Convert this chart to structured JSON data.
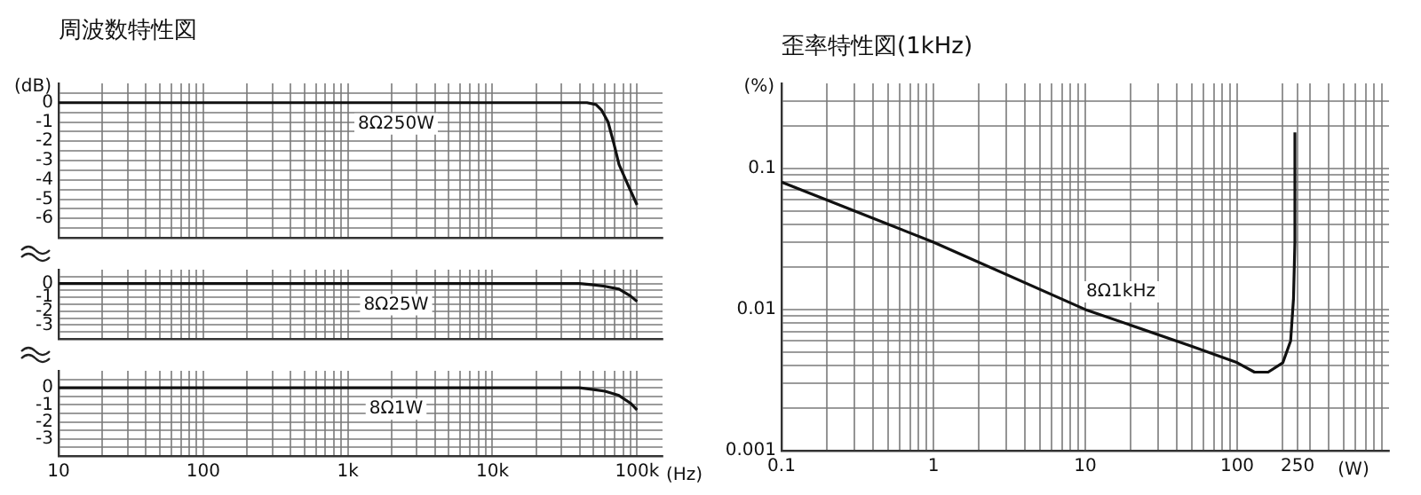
{
  "chart_data": [
    {
      "type": "line",
      "title": "周波数特性図",
      "ylabel": "(dB)",
      "log": "x",
      "grid": true,
      "marker": "none",
      "line_style": "solid",
      "tick_labels": "y",
      "xlim": [
        10,
        150000
      ],
      "ylim": [
        -7,
        1
      ],
      "xticks": [
        {
          "value": 10,
          "label": null
        },
        {
          "value": 20,
          "label": null
        },
        {
          "value": 30,
          "label": null
        },
        {
          "value": 40,
          "label": null
        },
        {
          "value": 50,
          "label": null
        },
        {
          "value": 60,
          "label": null
        },
        {
          "value": 70,
          "label": null
        },
        {
          "value": 80,
          "label": null
        },
        {
          "value": 90,
          "label": null
        },
        {
          "value": 100,
          "label": null
        },
        {
          "value": 200,
          "label": null
        },
        {
          "value": 300,
          "label": null
        },
        {
          "value": 400,
          "label": null
        },
        {
          "value": 500,
          "label": null
        },
        {
          "value": 600,
          "label": null
        },
        {
          "value": 700,
          "label": null
        },
        {
          "value": 800,
          "label": null
        },
        {
          "value": 900,
          "label": null
        },
        {
          "value": 1000,
          "label": null
        },
        {
          "value": 2000,
          "label": null
        },
        {
          "value": 3000,
          "label": null
        },
        {
          "value": 4000,
          "label": null
        },
        {
          "value": 5000,
          "label": null
        },
        {
          "value": 6000,
          "label": null
        },
        {
          "value": 7000,
          "label": null
        },
        {
          "value": 8000,
          "label": null
        },
        {
          "value": 9000,
          "label": null
        },
        {
          "value": 10000,
          "label": null
        },
        {
          "value": 20000,
          "label": null
        },
        {
          "value": 30000,
          "label": null
        },
        {
          "value": 40000,
          "label": null
        },
        {
          "value": 50000,
          "label": null
        },
        {
          "value": 60000,
          "label": null
        },
        {
          "value": 70000,
          "label": null
        },
        {
          "value": 80000,
          "label": null
        },
        {
          "value": 90000,
          "label": null
        },
        {
          "value": 100000,
          "label": null
        }
      ],
      "yticks": [
        {
          "value": 0.5,
          "label": null
        },
        0,
        {
          "value": -0.5,
          "label": null
        },
        -1,
        {
          "value": -1.5,
          "label": null
        },
        -2,
        {
          "value": -2.5,
          "label": null
        },
        -3,
        {
          "value": -3.5,
          "label": null
        },
        -4,
        {
          "value": -4.5,
          "label": null
        },
        -5,
        {
          "value": -5.5,
          "label": null
        },
        -6,
        {
          "value": -6.5,
          "label": null
        }
      ],
      "series": [
        {
          "name": "8Ω250W",
          "color": "#111111",
          "x": [
            10,
            100,
            1000,
            10000,
            30000,
            45000,
            52000,
            57000,
            63000,
            69000,
            75000,
            87000,
            100000
          ],
          "values": [
            0,
            0,
            0,
            0,
            0,
            0,
            -0.1,
            -0.4,
            -1.0,
            -2.1,
            -3.2,
            -4.3,
            -5.3
          ]
        }
      ]
    },
    {
      "type": "line",
      "log": "x",
      "grid": true,
      "marker": "none",
      "line_style": "solid",
      "tick_labels": "y",
      "xlim": [
        10,
        150000
      ],
      "ylim": [
        -4,
        1
      ],
      "xticks": [
        {
          "value": 10,
          "label": null
        },
        {
          "value": 20,
          "label": null
        },
        {
          "value": 30,
          "label": null
        },
        {
          "value": 40,
          "label": null
        },
        {
          "value": 50,
          "label": null
        },
        {
          "value": 60,
          "label": null
        },
        {
          "value": 70,
          "label": null
        },
        {
          "value": 80,
          "label": null
        },
        {
          "value": 90,
          "label": null
        },
        {
          "value": 100,
          "label": null
        },
        {
          "value": 200,
          "label": null
        },
        {
          "value": 300,
          "label": null
        },
        {
          "value": 400,
          "label": null
        },
        {
          "value": 500,
          "label": null
        },
        {
          "value": 600,
          "label": null
        },
        {
          "value": 700,
          "label": null
        },
        {
          "value": 800,
          "label": null
        },
        {
          "value": 900,
          "label": null
        },
        {
          "value": 1000,
          "label": null
        },
        {
          "value": 2000,
          "label": null
        },
        {
          "value": 3000,
          "label": null
        },
        {
          "value": 4000,
          "label": null
        },
        {
          "value": 5000,
          "label": null
        },
        {
          "value": 6000,
          "label": null
        },
        {
          "value": 7000,
          "label": null
        },
        {
          "value": 8000,
          "label": null
        },
        {
          "value": 9000,
          "label": null
        },
        {
          "value": 10000,
          "label": null
        },
        {
          "value": 20000,
          "label": null
        },
        {
          "value": 30000,
          "label": null
        },
        {
          "value": 40000,
          "label": null
        },
        {
          "value": 50000,
          "label": null
        },
        {
          "value": 60000,
          "label": null
        },
        {
          "value": 70000,
          "label": null
        },
        {
          "value": 80000,
          "label": null
        },
        {
          "value": 90000,
          "label": null
        },
        {
          "value": 100000,
          "label": null
        }
      ],
      "yticks": [
        {
          "value": 0.5,
          "label": null
        },
        0,
        {
          "value": -0.5,
          "label": null
        },
        -1,
        {
          "value": -1.5,
          "label": null
        },
        -2,
        {
          "value": -2.5,
          "label": null
        },
        -3,
        {
          "value": -3.5,
          "label": null
        }
      ],
      "series": [
        {
          "name": "8Ω25W",
          "color": "#111111",
          "x": [
            10,
            100,
            1000,
            10000,
            30000,
            40000,
            50000,
            60000,
            75000,
            90000,
            100000
          ],
          "values": [
            0,
            0,
            0,
            0,
            0,
            0,
            -0.1,
            -0.2,
            -0.4,
            -0.9,
            -1.3
          ]
        }
      ]
    },
    {
      "type": "line",
      "xlabel": "(Hz)",
      "log": "x",
      "grid": true,
      "marker": "none",
      "line_style": "solid",
      "xlim": [
        10,
        150000
      ],
      "ylim": [
        -4,
        1
      ],
      "xticks": [
        10,
        {
          "value": 20,
          "label": null
        },
        {
          "value": 30,
          "label": null
        },
        {
          "value": 40,
          "label": null
        },
        {
          "value": 50,
          "label": null
        },
        {
          "value": 60,
          "label": null
        },
        {
          "value": 70,
          "label": null
        },
        {
          "value": 80,
          "label": null
        },
        {
          "value": 90,
          "label": null
        },
        100,
        {
          "value": 200,
          "label": null
        },
        {
          "value": 300,
          "label": null
        },
        {
          "value": 400,
          "label": null
        },
        {
          "value": 500,
          "label": null
        },
        {
          "value": 600,
          "label": null
        },
        {
          "value": 700,
          "label": null
        },
        {
          "value": 800,
          "label": null
        },
        {
          "value": 900,
          "label": null
        },
        {
          "value": 1000,
          "label": "1k"
        },
        {
          "value": 2000,
          "label": null
        },
        {
          "value": 3000,
          "label": null
        },
        {
          "value": 4000,
          "label": null
        },
        {
          "value": 5000,
          "label": null
        },
        {
          "value": 6000,
          "label": null
        },
        {
          "value": 7000,
          "label": null
        },
        {
          "value": 8000,
          "label": null
        },
        {
          "value": 9000,
          "label": null
        },
        {
          "value": 10000,
          "label": "10k"
        },
        {
          "value": 20000,
          "label": null
        },
        {
          "value": 30000,
          "label": null
        },
        {
          "value": 40000,
          "label": null
        },
        {
          "value": 50000,
          "label": null
        },
        {
          "value": 60000,
          "label": null
        },
        {
          "value": 70000,
          "label": null
        },
        {
          "value": 80000,
          "label": null
        },
        {
          "value": 90000,
          "label": null
        },
        {
          "value": 100000,
          "label": "100k"
        }
      ],
      "yticks": [
        {
          "value": 0.5,
          "label": null
        },
        0,
        {
          "value": -0.5,
          "label": null
        },
        -1,
        {
          "value": -1.5,
          "label": null
        },
        -2,
        {
          "value": -2.5,
          "label": null
        },
        -3,
        {
          "value": -3.5,
          "label": null
        }
      ],
      "series": [
        {
          "name": "8Ω1W",
          "color": "#111111",
          "x": [
            10,
            100,
            1000,
            10000,
            30000,
            40000,
            50000,
            60000,
            75000,
            90000,
            100000
          ],
          "values": [
            0,
            0,
            0,
            0,
            0,
            0,
            -0.1,
            -0.2,
            -0.45,
            -0.9,
            -1.3
          ]
        }
      ]
    },
    {
      "type": "line",
      "title": "歪率特性図(1kHz)",
      "ylabel": "(%)",
      "xlabel": "(W)",
      "log": "xy",
      "grid": true,
      "marker": "none",
      "line_style": "solid",
      "xlim": [
        0.1,
        1000
      ],
      "ylim": [
        0.001,
        0.4
      ],
      "xticks": [
        0.1,
        {
          "value": 0.2,
          "label": null
        },
        {
          "value": 0.3,
          "label": null
        },
        {
          "value": 0.4,
          "label": null
        },
        {
          "value": 0.5,
          "label": null
        },
        {
          "value": 0.6,
          "label": null
        },
        {
          "value": 0.7,
          "label": null
        },
        {
          "value": 0.8,
          "label": null
        },
        {
          "value": 0.9,
          "label": null
        },
        1,
        {
          "value": 2,
          "label": null
        },
        {
          "value": 3,
          "label": null
        },
        {
          "value": 4,
          "label": null
        },
        {
          "value": 5,
          "label": null
        },
        {
          "value": 6,
          "label": null
        },
        {
          "value": 7,
          "label": null
        },
        {
          "value": 8,
          "label": null
        },
        {
          "value": 9,
          "label": null
        },
        10,
        {
          "value": 20,
          "label": null
        },
        {
          "value": 30,
          "label": null
        },
        {
          "value": 40,
          "label": null
        },
        {
          "value": 50,
          "label": null
        },
        {
          "value": 60,
          "label": null
        },
        {
          "value": 70,
          "label": null
        },
        {
          "value": 80,
          "label": null
        },
        {
          "value": 90,
          "label": null
        },
        100,
        {
          "value": 200,
          "label": null
        },
        250,
        {
          "value": 300,
          "label": null
        },
        {
          "value": 400,
          "label": null
        },
        {
          "value": 500,
          "label": null
        },
        {
          "value": 600,
          "label": null
        },
        {
          "value": 700,
          "label": null
        },
        {
          "value": 800,
          "label": null
        },
        {
          "value": 900,
          "label": null
        }
      ],
      "yticks": [
        0.001,
        {
          "value": 0.002,
          "label": null
        },
        {
          "value": 0.003,
          "label": null
        },
        {
          "value": 0.004,
          "label": null
        },
        {
          "value": 0.005,
          "label": null
        },
        {
          "value": 0.006,
          "label": null
        },
        {
          "value": 0.007,
          "label": null
        },
        {
          "value": 0.008,
          "label": null
        },
        {
          "value": 0.009,
          "label": null
        },
        0.01,
        {
          "value": 0.02,
          "label": null
        },
        {
          "value": 0.03,
          "label": null
        },
        {
          "value": 0.04,
          "label": null
        },
        {
          "value": 0.05,
          "label": null
        },
        {
          "value": 0.06,
          "label": null
        },
        {
          "value": 0.07,
          "label": null
        },
        {
          "value": 0.08,
          "label": null
        },
        {
          "value": 0.09,
          "label": null
        },
        0.1,
        {
          "value": 0.2,
          "label": null
        },
        {
          "value": 0.3,
          "label": null
        }
      ],
      "series": [
        {
          "name": "8Ω1kHz",
          "color": "#111111",
          "x": [
            0.1,
            1,
            10,
            50,
            100,
            130,
            160,
            200,
            225,
            235,
            240,
            240
          ],
          "values": [
            0.08,
            0.03,
            0.01,
            0.0055,
            0.0042,
            0.0036,
            0.0036,
            0.0042,
            0.006,
            0.012,
            0.03,
            0.18
          ]
        }
      ]
    }
  ]
}
